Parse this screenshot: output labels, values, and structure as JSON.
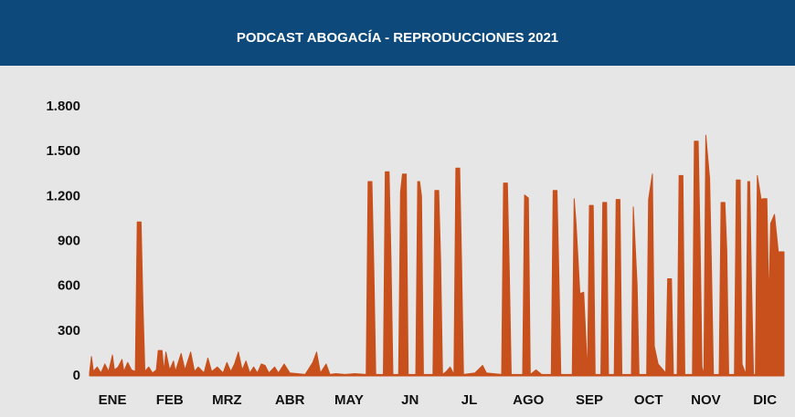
{
  "chart_data": {
    "type": "area",
    "title": "PODCAST ABOGACÍA - REPRODUCCIONES 2021",
    "color": "#c8501c",
    "grid": false,
    "xlim": [
      1,
      365
    ],
    "ylim": [
      0,
      1800
    ],
    "yticks": [
      0,
      300,
      600,
      900,
      {
        "value": 1200,
        "label": "1.200"
      },
      {
        "value": 1500,
        "label": "1.500"
      },
      {
        "value": 1800,
        "label": "1.800"
      }
    ],
    "xticks": [
      {
        "value": 13,
        "label": "ENE"
      },
      {
        "value": 43,
        "label": "FEB"
      },
      {
        "value": 73,
        "label": "MRZ"
      },
      {
        "value": 106,
        "label": "ABR"
      },
      {
        "value": 137,
        "label": "MAY"
      },
      {
        "value": 169,
        "label": "JN"
      },
      {
        "value": 200,
        "label": "JL"
      },
      {
        "value": 231,
        "label": "AGO"
      },
      {
        "value": 263,
        "label": "SEP"
      },
      {
        "value": 294,
        "label": "OCT"
      },
      {
        "value": 324,
        "label": "NOV"
      },
      {
        "value": 355,
        "label": "DIC"
      }
    ],
    "x": [
      1,
      2,
      3,
      5,
      7,
      9,
      11,
      13,
      14,
      16,
      18,
      19,
      21,
      23,
      25,
      26,
      28,
      29,
      30,
      32,
      34,
      36,
      37,
      39,
      40,
      41,
      43,
      45,
      46,
      49,
      51,
      54,
      56,
      58,
      61,
      63,
      65,
      68,
      71,
      73,
      75,
      77,
      79,
      81,
      83,
      85,
      87,
      89,
      91,
      93,
      95,
      98,
      100,
      103,
      106,
      110,
      114,
      118,
      120,
      122,
      125,
      127,
      130,
      135,
      140,
      146,
      147,
      149,
      150,
      151,
      155,
      156,
      158,
      159,
      160,
      163,
      164,
      165,
      167,
      168,
      172,
      173,
      174,
      175,
      176,
      181,
      182,
      184,
      185,
      186,
      188,
      190,
      192,
      193,
      195,
      196,
      197,
      203,
      207,
      209,
      217,
      218,
      220,
      221,
      222,
      228,
      229,
      231,
      232,
      235,
      238,
      243,
      244,
      246,
      247,
      248,
      254,
      255,
      256,
      258,
      260,
      262,
      263,
      265,
      266,
      269,
      270,
      272,
      273,
      276,
      277,
      279,
      280,
      285,
      286,
      288,
      289,
      293,
      294,
      296,
      297,
      299,
      303,
      304,
      306,
      307,
      309,
      310,
      312,
      313,
      317,
      318,
      320,
      321,
      322,
      323,
      324,
      326,
      327,
      328,
      331,
      332,
      334,
      335,
      336,
      339,
      340,
      342,
      343,
      345,
      346,
      347,
      348,
      349,
      350,
      351,
      353,
      354,
      356,
      357,
      358,
      360,
      362,
      365
    ],
    "values": [
      20,
      130,
      30,
      60,
      20,
      80,
      30,
      140,
      40,
      60,
      110,
      30,
      90,
      40,
      30,
      1030,
      1030,
      470,
      30,
      60,
      20,
      40,
      170,
      170,
      30,
      160,
      40,
      100,
      30,
      150,
      40,
      160,
      30,
      60,
      20,
      120,
      30,
      60,
      20,
      90,
      30,
      80,
      160,
      40,
      100,
      20,
      60,
      20,
      80,
      70,
      20,
      60,
      20,
      80,
      20,
      15,
      10,
      90,
      160,
      20,
      80,
      10,
      15,
      10,
      15,
      10,
      1300,
      1300,
      720,
      10,
      10,
      1365,
      1365,
      780,
      10,
      10,
      1230,
      1350,
      1350,
      10,
      10,
      1300,
      1300,
      1200,
      10,
      10,
      1240,
      1240,
      780,
      10,
      30,
      60,
      10,
      1390,
      1390,
      750,
      10,
      20,
      70,
      20,
      10,
      1290,
      1290,
      700,
      10,
      10,
      1210,
      1190,
      10,
      40,
      10,
      10,
      1240,
      1240,
      670,
      10,
      10,
      1185,
      1020,
      550,
      560,
      10,
      1140,
      1140,
      10,
      10,
      1160,
      1160,
      10,
      10,
      1180,
      1180,
      10,
      10,
      1130,
      610,
      10,
      10,
      1180,
      1350,
      200,
      80,
      20,
      650,
      650,
      10,
      10,
      1340,
      1340,
      10,
      10,
      1570,
      1570,
      900,
      60,
      10,
      1610,
      1320,
      700,
      10,
      10,
      1160,
      1160,
      840,
      10,
      10,
      1310,
      1310,
      80,
      10,
      1300,
      1300,
      600,
      10,
      10,
      1340,
      1180,
      1185,
      1185,
      500,
      1020,
      1080,
      830,
      830
    ]
  }
}
